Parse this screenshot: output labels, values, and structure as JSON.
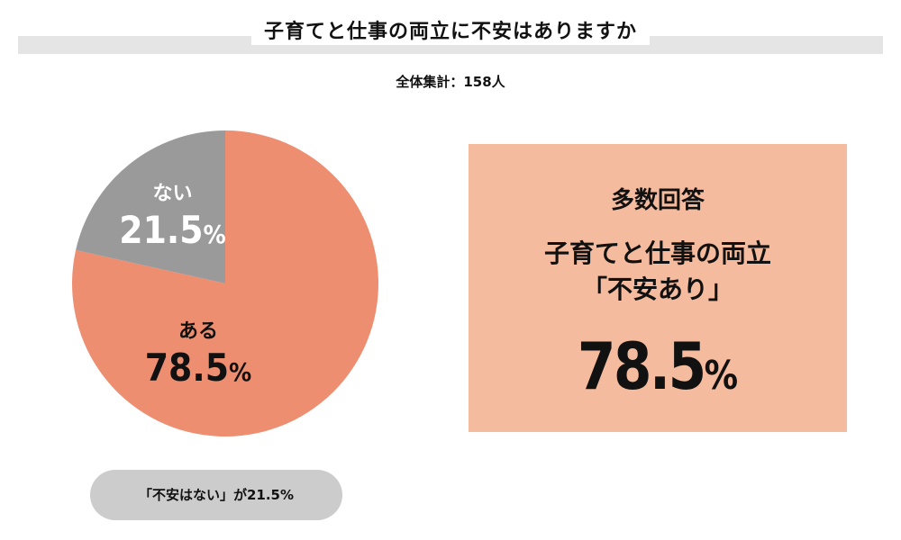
{
  "title": "子育てと仕事の両立に不安はありますか",
  "subtitle": "全体集計：158人",
  "chart_data": {
    "type": "pie",
    "title": "子育てと仕事の両立に不安はありますか",
    "total_label": "全体集計：158人",
    "unit": "%",
    "slices": [
      {
        "label": "ある",
        "value": 78.5,
        "value_text": "78.5",
        "color": "#ee8e71"
      },
      {
        "label": "ない",
        "value": 21.5,
        "value_text": "21.5",
        "color": "#9a9a9a"
      }
    ]
  },
  "summary": {
    "heading": "多数回答",
    "line1": "子育てと仕事の両立",
    "line2": "「不安あり」",
    "value": "78.5",
    "unit": "%"
  },
  "note": "「不安はない」が21.5%"
}
